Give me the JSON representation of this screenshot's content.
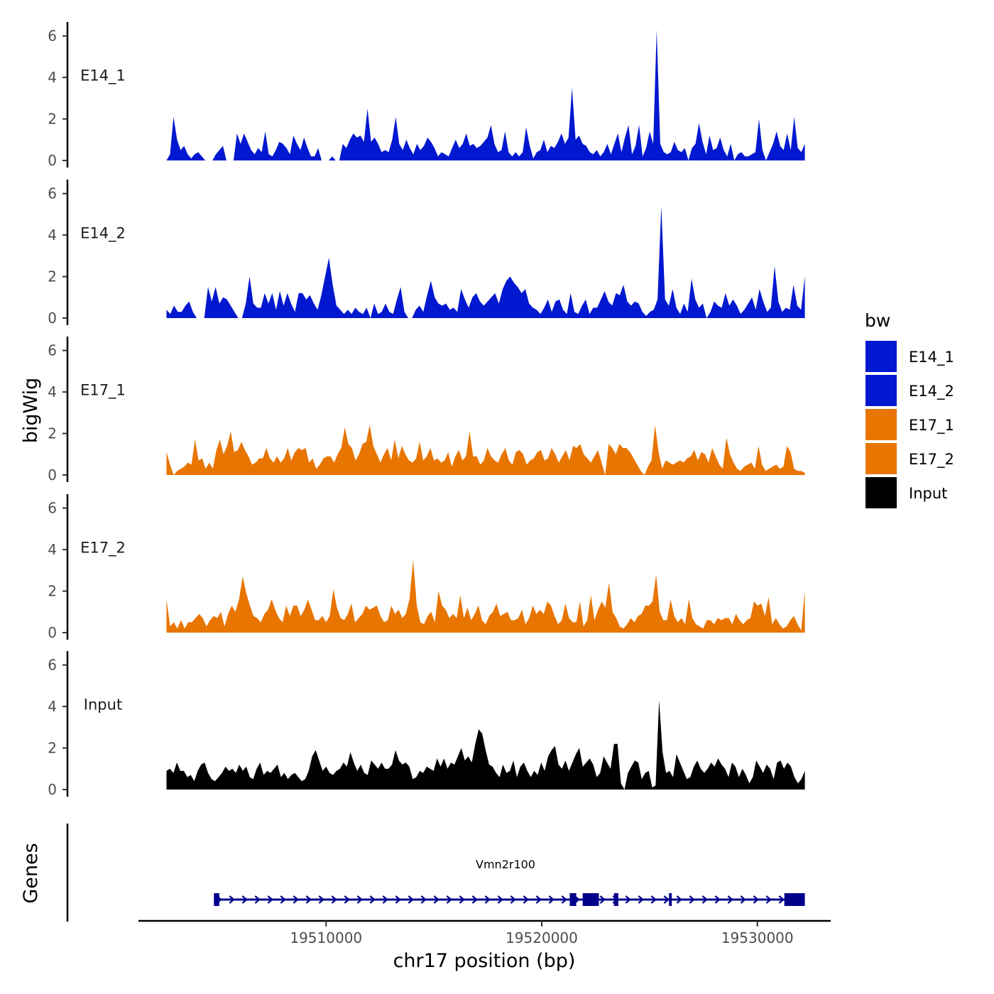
{
  "chart_data": {
    "type": "area",
    "x_axis": {
      "label": "chr17 position (bp)",
      "ticks": [
        19510000,
        19520000,
        19530000
      ],
      "range": [
        19501300,
        19533400
      ]
    },
    "y_axis": {
      "label": "bigWig",
      "ticks": [
        0,
        2,
        4,
        6
      ],
      "range": [
        0,
        6.5
      ]
    },
    "data_range": [
      19502600,
      19532200
    ],
    "tracks": [
      {
        "name": "E14_1",
        "color": "#0018D0",
        "values": [
          0,
          0.3,
          2.1,
          1,
          0.5,
          0.7,
          0.3,
          0.1,
          0.3,
          0.4,
          0.2,
          0,
          0,
          0,
          0.3,
          0.5,
          0.7,
          0,
          0,
          0,
          1.3,
          0.8,
          1.3,
          0.9,
          0.5,
          0.3,
          0.6,
          0.4,
          1.4,
          0.3,
          0.2,
          0.5,
          0.9,
          0.8,
          0.6,
          0.3,
          1.2,
          0.8,
          0.5,
          1.1,
          0.6,
          0.2,
          0.2,
          0.6,
          0,
          0,
          0,
          0.2,
          0,
          0,
          0.8,
          0.6,
          1,
          1.3,
          1.1,
          1.2,
          0.9,
          2.5,
          0.9,
          1.1,
          0.8,
          0.4,
          0.5,
          0.4,
          1,
          2.1,
          0.8,
          0.5,
          1,
          0.6,
          0.3,
          0.8,
          0.5,
          0.7,
          1.1,
          0.9,
          0.6,
          0.2,
          0.4,
          0.3,
          0.2,
          0.6,
          1,
          0.6,
          0.8,
          1.3,
          0.7,
          0.8,
          0.6,
          0.7,
          0.9,
          1.1,
          1.7,
          0.8,
          0.4,
          0.5,
          1.4,
          0.4,
          0.2,
          0.4,
          0.2,
          0.4,
          1.6,
          0.7,
          0.1,
          0.4,
          0.5,
          1,
          0.4,
          0.7,
          0.6,
          0.9,
          1.3,
          0.8,
          1.1,
          3.5,
          1,
          1.2,
          0.8,
          0.7,
          0.4,
          0.3,
          0.5,
          0.2,
          0.4,
          0.8,
          0.3,
          0.8,
          1.3,
          0.4,
          1.1,
          1.7,
          0.3,
          0.7,
          1.7,
          0.2,
          0.6,
          1.4,
          0.8,
          6.3,
          0.8,
          0.4,
          0.3,
          0.4,
          0.9,
          0.5,
          0.4,
          0.6,
          0,
          0.6,
          0.8,
          1.8,
          0.9,
          0.3,
          1.2,
          0.5,
          0.6,
          1.1,
          0.5,
          0.2,
          0.8,
          0,
          0.3,
          0.4,
          0.2,
          0.2,
          0.3,
          0.4,
          2,
          0.5,
          0,
          0.4,
          0.8,
          1.4,
          0.7,
          0.5,
          1.3,
          0.5,
          2.1,
          0.6,
          0.4,
          0.8
        ]
      },
      {
        "name": "E14_2",
        "color": "#0018D0",
        "values": [
          0.4,
          0.2,
          0.6,
          0.3,
          0.3,
          0.6,
          0.8,
          0.3,
          0,
          0,
          0,
          1.5,
          0.8,
          1.5,
          0.7,
          1,
          0.9,
          0.6,
          0.3,
          0,
          0,
          0.7,
          2,
          0.7,
          0.5,
          0.5,
          1.2,
          0.7,
          1.2,
          0.4,
          1.3,
          0.6,
          1.2,
          0.7,
          0.3,
          1.2,
          1.2,
          0.9,
          1.1,
          0.7,
          0.4,
          1.1,
          2,
          2.9,
          1.6,
          0.6,
          0.4,
          0.2,
          0.4,
          0.2,
          0.5,
          0.3,
          0.2,
          0.5,
          0,
          0.7,
          0.2,
          0.3,
          0.7,
          0.3,
          0.2,
          0.9,
          1.5,
          0.3,
          0,
          0,
          0.4,
          0.6,
          0.3,
          1.1,
          1.8,
          1,
          0.7,
          0.6,
          0.7,
          0.4,
          0.5,
          0.3,
          1.4,
          0.9,
          0.5,
          1,
          1.2,
          0.8,
          0.6,
          0.8,
          1,
          1.2,
          0.7,
          1.4,
          1.8,
          2,
          1.7,
          1.5,
          1.2,
          1.4,
          0.7,
          0.5,
          0.4,
          0.2,
          0.5,
          0.9,
          0.3,
          0.8,
          0.9,
          0.4,
          0.2,
          1.2,
          0.3,
          0.2,
          0.6,
          0.9,
          0.2,
          0.5,
          0.5,
          0.9,
          1.3,
          0.8,
          0.6,
          1.2,
          1.1,
          1.6,
          0.8,
          0.6,
          0.8,
          0.7,
          0.3,
          0.1,
          0.3,
          0.4,
          0.9,
          5.4,
          0.9,
          0.6,
          1.4,
          0.5,
          0.2,
          0.7,
          0.3,
          1.9,
          0.9,
          0.5,
          0.7,
          0,
          0.3,
          0.8,
          0.6,
          0.5,
          1.2,
          0.6,
          0.9,
          0.6,
          0.2,
          0.4,
          0.7,
          1,
          0.4,
          1.4,
          0.8,
          0.3,
          0.5,
          2.5,
          0.8,
          0.3,
          0.5,
          0.4,
          1.6,
          0.6,
          0.4,
          2
        ]
      },
      {
        "name": "E17_1",
        "color": "#E87500",
        "values": [
          1.1,
          0.5,
          0,
          0.2,
          0.3,
          0.4,
          0.6,
          0.5,
          1.7,
          0.7,
          0.8,
          0.3,
          0.6,
          0.3,
          1.2,
          1.7,
          1,
          1.4,
          2.1,
          1.1,
          1.2,
          1.6,
          1.2,
          0.9,
          0.5,
          0.6,
          0.8,
          0.8,
          1.3,
          0.8,
          0.6,
          0.9,
          0.6,
          0.8,
          1.3,
          0.7,
          1.1,
          1.3,
          1.2,
          1.3,
          0.6,
          0.8,
          0.3,
          0.5,
          0.8,
          0.9,
          0.9,
          0.6,
          1,
          1.3,
          2.3,
          1.5,
          1.3,
          0.7,
          1,
          1.5,
          1.6,
          2.4,
          1.4,
          1,
          0.6,
          1,
          1.3,
          0.7,
          1.7,
          0.8,
          1.4,
          1,
          0.7,
          0.6,
          0.8,
          1.6,
          0.7,
          0.9,
          1.3,
          0.7,
          0.8,
          0.6,
          0.7,
          1.1,
          0.4,
          0.9,
          1.2,
          0.7,
          0.9,
          2.1,
          0.9,
          0.9,
          0.5,
          0.7,
          1.3,
          0.9,
          0.7,
          0.6,
          1,
          1.3,
          0.7,
          0.5,
          1.1,
          1.2,
          1,
          0.5,
          0.7,
          0.8,
          1.1,
          1.2,
          0.7,
          0.8,
          1.3,
          1,
          0.6,
          0.9,
          1.2,
          0.7,
          1.4,
          1.3,
          1.5,
          1,
          0.8,
          0.6,
          0.9,
          1.2,
          0.6,
          0,
          1.5,
          1.3,
          1,
          1.5,
          1.3,
          1.3,
          1.1,
          0.8,
          0.5,
          0.2,
          0,
          0.4,
          0.7,
          2.4,
          1.1,
          0.3,
          0.7,
          0.6,
          0.5,
          0.6,
          0.7,
          0.6,
          0.8,
          0.9,
          1.2,
          0.7,
          1.1,
          1,
          0.6,
          1.3,
          0.9,
          0.5,
          0.3,
          1.8,
          1,
          0.6,
          0.3,
          0.2,
          0.4,
          0.5,
          0.6,
          0.3,
          1.4,
          0.5,
          0.2,
          0.3,
          0.4,
          0.5,
          0.3,
          0.4,
          1.4,
          1.1,
          0.3,
          0.2,
          0.2,
          0.1
        ]
      },
      {
        "name": "E17_2",
        "color": "#E87500",
        "values": [
          1.6,
          0.3,
          0.5,
          0.2,
          0.6,
          0.2,
          0.5,
          0.5,
          0.7,
          0.9,
          0.7,
          0.3,
          0.6,
          0.8,
          0.7,
          1,
          0.3,
          0.9,
          1.3,
          1,
          1.6,
          2.7,
          1.9,
          1.3,
          0.8,
          0.7,
          0.5,
          0.9,
          1.1,
          1.6,
          1.1,
          0.7,
          0.5,
          1.3,
          0.8,
          1.3,
          1.3,
          0.8,
          1.1,
          1.6,
          1.1,
          0.6,
          0.6,
          0.8,
          0.5,
          0.8,
          2.1,
          1.2,
          0.7,
          0.6,
          0.9,
          1.4,
          0.5,
          0.7,
          0.9,
          1.3,
          1.1,
          1.2,
          1.3,
          0.8,
          0.5,
          0.6,
          1.3,
          0.9,
          1.1,
          0.7,
          0.9,
          1.6,
          3.5,
          1.3,
          0.5,
          0.4,
          0.8,
          1,
          0.5,
          2,
          1.3,
          1.1,
          0.7,
          0.9,
          0.7,
          1.8,
          0.7,
          1.2,
          0.6,
          0.9,
          1.3,
          0.6,
          0.4,
          0.8,
          1,
          1.4,
          0.8,
          0.9,
          1,
          0.6,
          0.6,
          0.7,
          1.1,
          0.4,
          0.7,
          1.3,
          0.9,
          1.1,
          0.9,
          1.5,
          1.3,
          0.8,
          0.4,
          0.6,
          1.4,
          0.7,
          0.5,
          0.5,
          1.5,
          0.3,
          0.6,
          1.8,
          0.6,
          1.1,
          1.5,
          1.2,
          2.4,
          1,
          0.7,
          0.3,
          0.2,
          0.4,
          0.7,
          0.5,
          0.8,
          0.9,
          1.3,
          1.3,
          1.5,
          2.8,
          1,
          0.6,
          0.6,
          1.6,
          0.8,
          0.5,
          0.7,
          0.4,
          1.6,
          0.7,
          0.4,
          0.3,
          0.2,
          0.6,
          0.6,
          0.4,
          0.7,
          0.6,
          0.7,
          0.7,
          0.4,
          0.9,
          0.6,
          0.4,
          0.6,
          0.7,
          1.5,
          1.3,
          1.4,
          0.8,
          1.7,
          0.4,
          0.7,
          0.4,
          0.2,
          0.3,
          0.6,
          0.8,
          0.4,
          0.1,
          2
        ]
      },
      {
        "name": "Input",
        "color": "#000000",
        "values": [
          0.9,
          1,
          0.8,
          1.3,
          0.9,
          0.9,
          0.6,
          0.7,
          0.4,
          0.9,
          1.2,
          1.3,
          0.8,
          0.5,
          0.4,
          0.6,
          0.8,
          1.1,
          0.9,
          1,
          0.8,
          1.2,
          0.9,
          1.1,
          0.6,
          0.5,
          1,
          1.3,
          0.7,
          0.9,
          0.8,
          1,
          1.2,
          0.6,
          0.8,
          0.5,
          0.7,
          0.8,
          0.6,
          0.4,
          0.5,
          0.9,
          1.6,
          1.9,
          1.4,
          0.9,
          1.1,
          0.8,
          0.7,
          0.9,
          1,
          1.3,
          1.1,
          1.8,
          1.3,
          0.9,
          1.2,
          0.8,
          0.7,
          1.4,
          1.2,
          1,
          1.3,
          1,
          1,
          1.2,
          1.9,
          1.4,
          1.2,
          1.3,
          1.1,
          0.5,
          0.6,
          0.9,
          0.8,
          1.1,
          1,
          0.9,
          1.5,
          1.1,
          1.5,
          1,
          1.3,
          1.2,
          1.6,
          2,
          1.4,
          1.6,
          1.3,
          2.2,
          2.9,
          2.7,
          1.9,
          1.2,
          1.1,
          0.8,
          0.6,
          1.2,
          0.8,
          0.9,
          1.4,
          0.6,
          1.1,
          1.3,
          0.9,
          0.6,
          0.9,
          0.7,
          1.3,
          0.9,
          1.6,
          1.9,
          2.1,
          1.2,
          1,
          1.4,
          0.9,
          1.3,
          1.7,
          2,
          1.1,
          1.3,
          1.5,
          1.2,
          0.6,
          0.8,
          1.6,
          1.3,
          1,
          2.2,
          2.2,
          0.3,
          0,
          0.8,
          1.1,
          1.4,
          1.3,
          0.5,
          0.8,
          0.9,
          0.1,
          0.2,
          4.3,
          1.8,
          0.8,
          0.9,
          0.6,
          1.7,
          1.3,
          0.9,
          0.5,
          0.6,
          1.1,
          1.4,
          1,
          0.8,
          1,
          1.3,
          1.1,
          1.5,
          1.2,
          1,
          0.6,
          1.3,
          1.1,
          0.6,
          1,
          0.7,
          0.3,
          0.6,
          1.4,
          1.1,
          0.8,
          1.2,
          1,
          0.5,
          1.3,
          1.4,
          1,
          1.3,
          1.1,
          0.6,
          0.3,
          0.5,
          0.9
        ]
      }
    ],
    "gene": {
      "name": "Vmn2r100",
      "color": "#00008B",
      "start": 19504800,
      "end": 19532200,
      "exons": [
        {
          "start": 19504800,
          "end": 19505050
        },
        {
          "start": 19521300,
          "end": 19521600
        },
        {
          "start": 19521900,
          "end": 19522650
        },
        {
          "start": 19523350,
          "end": 19523550
        },
        {
          "start": 19525900,
          "end": 19526000
        },
        {
          "start": 19531250,
          "end": 19532200
        }
      ]
    },
    "gene_panel_label": "Genes",
    "legend": {
      "title": "bw",
      "entries": [
        {
          "label": "E14_1",
          "color": "#0018D0"
        },
        {
          "label": "E14_2",
          "color": "#0018D0"
        },
        {
          "label": "E17_1",
          "color": "#E87500"
        },
        {
          "label": "E17_2",
          "color": "#E87500"
        },
        {
          "label": "Input",
          "color": "#000000"
        }
      ]
    }
  }
}
